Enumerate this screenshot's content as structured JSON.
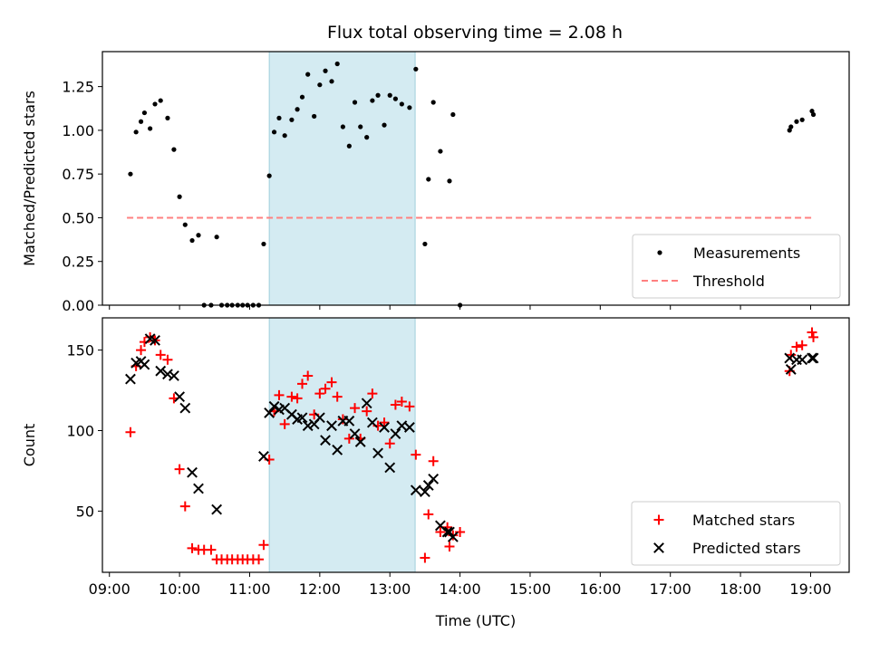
{
  "chart_data": [
    {
      "type": "scatter",
      "title": "Flux total observing time = 2.08 h",
      "xlabel": "",
      "ylabel": "Matched/Predicted stars",
      "xlim": [
        8.9,
        19.55
      ],
      "ylim": [
        0.0,
        1.45
      ],
      "yticks": [
        0.0,
        0.25,
        0.5,
        0.75,
        1.0,
        1.25
      ],
      "ytick_labels": [
        "0.00",
        "0.25",
        "0.50",
        "0.75",
        "1.00",
        "1.25"
      ],
      "grid": false,
      "legend_position": "lower-right",
      "shaded_region": {
        "x_start": 11.28,
        "x_end": 13.36,
        "color": "#add8e6"
      },
      "threshold": {
        "name": "Threshold",
        "value": 0.5,
        "x_range": [
          9.25,
          19.05
        ],
        "color": "#ff8080",
        "style": "dashed"
      },
      "series": [
        {
          "name": "Measurements",
          "color": "#000000",
          "marker": "dot",
          "points": [
            [
              9.3,
              0.75
            ],
            [
              9.38,
              0.99
            ],
            [
              9.45,
              1.05
            ],
            [
              9.5,
              1.1
            ],
            [
              9.58,
              1.01
            ],
            [
              9.65,
              1.15
            ],
            [
              9.73,
              1.17
            ],
            [
              9.83,
              1.07
            ],
            [
              9.92,
              0.89
            ],
            [
              10.0,
              0.62
            ],
            [
              10.08,
              0.46
            ],
            [
              10.18,
              0.37
            ],
            [
              10.27,
              0.4
            ],
            [
              10.35,
              0.0
            ],
            [
              10.45,
              0.0
            ],
            [
              10.53,
              0.39
            ],
            [
              10.6,
              0.0
            ],
            [
              10.68,
              0.0
            ],
            [
              10.75,
              0.0
            ],
            [
              10.83,
              0.0
            ],
            [
              10.9,
              0.0
            ],
            [
              10.97,
              0.0
            ],
            [
              11.05,
              0.0
            ],
            [
              11.13,
              0.0
            ],
            [
              11.2,
              0.35
            ],
            [
              11.28,
              0.74
            ],
            [
              11.35,
              0.99
            ],
            [
              11.42,
              1.07
            ],
            [
              11.5,
              0.97
            ],
            [
              11.6,
              1.06
            ],
            [
              11.68,
              1.12
            ],
            [
              11.75,
              1.19
            ],
            [
              11.83,
              1.32
            ],
            [
              11.92,
              1.08
            ],
            [
              12.0,
              1.26
            ],
            [
              12.08,
              1.34
            ],
            [
              12.17,
              1.28
            ],
            [
              12.25,
              1.38
            ],
            [
              12.33,
              1.02
            ],
            [
              12.42,
              0.91
            ],
            [
              12.5,
              1.16
            ],
            [
              12.58,
              1.02
            ],
            [
              12.67,
              0.96
            ],
            [
              12.75,
              1.17
            ],
            [
              12.83,
              1.2
            ],
            [
              12.92,
              1.03
            ],
            [
              13.0,
              1.2
            ],
            [
              13.08,
              1.18
            ],
            [
              13.17,
              1.15
            ],
            [
              13.28,
              1.13
            ],
            [
              13.37,
              1.35
            ],
            [
              13.5,
              0.35
            ],
            [
              13.55,
              0.72
            ],
            [
              13.62,
              1.16
            ],
            [
              13.72,
              0.88
            ],
            [
              13.85,
              0.71
            ],
            [
              13.9,
              1.09
            ],
            [
              14.0,
              0.0
            ],
            [
              18.7,
              1.0
            ],
            [
              18.72,
              1.02
            ],
            [
              18.8,
              1.05
            ],
            [
              18.88,
              1.06
            ],
            [
              19.02,
              1.11
            ],
            [
              19.04,
              1.09
            ]
          ]
        }
      ]
    },
    {
      "type": "scatter",
      "title": "",
      "xlabel": "Time (UTC)",
      "ylabel": "Count",
      "xlim": [
        8.9,
        19.55
      ],
      "ylim": [
        12,
        170
      ],
      "xticks": [
        9,
        10,
        11,
        12,
        13,
        14,
        15,
        16,
        17,
        18,
        19
      ],
      "xtick_labels": [
        "09:00",
        "10:00",
        "11:00",
        "12:00",
        "13:00",
        "14:00",
        "15:00",
        "16:00",
        "17:00",
        "18:00",
        "19:00"
      ],
      "yticks": [
        50,
        100,
        150
      ],
      "ytick_labels": [
        "50",
        "100",
        "150"
      ],
      "grid": false,
      "legend_position": "lower-right",
      "shaded_region": {
        "x_start": 11.28,
        "x_end": 13.36,
        "color": "#add8e6"
      },
      "series": [
        {
          "name": "Matched stars",
          "color": "#ff0000",
          "marker": "plus",
          "points": [
            [
              9.3,
              99
            ],
            [
              9.38,
              140
            ],
            [
              9.45,
              150
            ],
            [
              9.5,
              155
            ],
            [
              9.58,
              158
            ],
            [
              9.65,
              156
            ],
            [
              9.73,
              147
            ],
            [
              9.83,
              144
            ],
            [
              9.92,
              120
            ],
            [
              10.0,
              76
            ],
            [
              10.08,
              53
            ],
            [
              10.18,
              27
            ],
            [
              10.27,
              26
            ],
            [
              10.35,
              26
            ],
            [
              10.45,
              26
            ],
            [
              10.53,
              20
            ],
            [
              10.6,
              20
            ],
            [
              10.68,
              20
            ],
            [
              10.75,
              20
            ],
            [
              10.83,
              20
            ],
            [
              10.9,
              20
            ],
            [
              10.97,
              20
            ],
            [
              11.05,
              20
            ],
            [
              11.13,
              20
            ],
            [
              11.2,
              29
            ],
            [
              11.28,
              82
            ],
            [
              11.35,
              112
            ],
            [
              11.42,
              122
            ],
            [
              11.5,
              104
            ],
            [
              11.6,
              121
            ],
            [
              11.68,
              120
            ],
            [
              11.75,
              129
            ],
            [
              11.83,
              134
            ],
            [
              11.92,
              110
            ],
            [
              12.0,
              123
            ],
            [
              12.08,
              126
            ],
            [
              12.17,
              130
            ],
            [
              12.25,
              121
            ],
            [
              12.33,
              107
            ],
            [
              12.42,
              95
            ],
            [
              12.5,
              114
            ],
            [
              12.58,
              95
            ],
            [
              12.67,
              112
            ],
            [
              12.75,
              123
            ],
            [
              12.83,
              103
            ],
            [
              12.92,
              105
            ],
            [
              13.0,
              92
            ],
            [
              13.08,
              116
            ],
            [
              13.17,
              118
            ],
            [
              13.28,
              115
            ],
            [
              13.37,
              85
            ],
            [
              13.5,
              21
            ],
            [
              13.55,
              48
            ],
            [
              13.62,
              81
            ],
            [
              13.72,
              37
            ],
            [
              13.82,
              40
            ],
            [
              13.85,
              28
            ],
            [
              13.9,
              35
            ],
            [
              14.0,
              37
            ],
            [
              18.7,
              137
            ],
            [
              18.72,
              147
            ],
            [
              18.8,
              152
            ],
            [
              18.88,
              153
            ],
            [
              19.02,
              161
            ],
            [
              19.04,
              158
            ]
          ]
        },
        {
          "name": "Predicted stars",
          "color": "#000000",
          "marker": "x",
          "points": [
            [
              9.3,
              132
            ],
            [
              9.38,
              142
            ],
            [
              9.45,
              143
            ],
            [
              9.5,
              141
            ],
            [
              9.58,
              157
            ],
            [
              9.65,
              156
            ],
            [
              9.73,
              137
            ],
            [
              9.83,
              135
            ],
            [
              9.92,
              134
            ],
            [
              10.0,
              121
            ],
            [
              10.08,
              114
            ],
            [
              10.18,
              74
            ],
            [
              10.27,
              64
            ],
            [
              10.53,
              51
            ],
            [
              11.2,
              84
            ],
            [
              11.28,
              111
            ],
            [
              11.35,
              115
            ],
            [
              11.42,
              113
            ],
            [
              11.5,
              114
            ],
            [
              11.6,
              110
            ],
            [
              11.68,
              107
            ],
            [
              11.75,
              108
            ],
            [
              11.83,
              103
            ],
            [
              11.92,
              104
            ],
            [
              12.0,
              108
            ],
            [
              12.08,
              94
            ],
            [
              12.17,
              103
            ],
            [
              12.25,
              88
            ],
            [
              12.33,
              106
            ],
            [
              12.42,
              106
            ],
            [
              12.5,
              98
            ],
            [
              12.58,
              93
            ],
            [
              12.67,
              117
            ],
            [
              12.75,
              105
            ],
            [
              12.83,
              86
            ],
            [
              12.92,
              102
            ],
            [
              13.0,
              77
            ],
            [
              13.08,
              98
            ],
            [
              13.17,
              103
            ],
            [
              13.28,
              102
            ],
            [
              13.37,
              63
            ],
            [
              13.5,
              62
            ],
            [
              13.55,
              66
            ],
            [
              13.62,
              70
            ],
            [
              13.72,
              41
            ],
            [
              13.82,
              37
            ],
            [
              13.85,
              37
            ],
            [
              13.9,
              34
            ],
            [
              18.7,
              145
            ],
            [
              18.72,
              138
            ],
            [
              18.8,
              144
            ],
            [
              18.88,
              144
            ],
            [
              19.02,
              145
            ],
            [
              19.04,
              145
            ]
          ]
        }
      ]
    }
  ]
}
